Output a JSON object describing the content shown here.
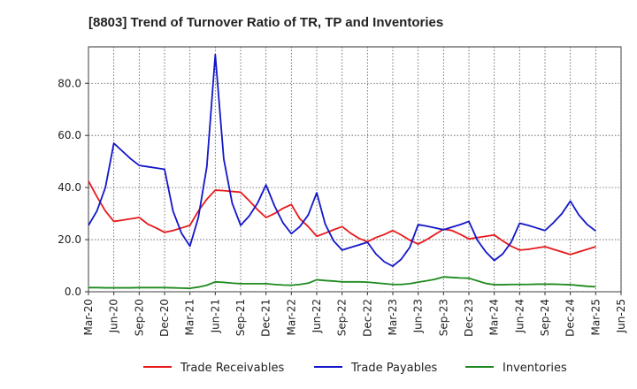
{
  "chart_data": {
    "type": "line",
    "title": "[8803]  Trend of Turnover Ratio of TR, TP and Inventories",
    "xlabel": "",
    "ylabel": "",
    "x_tick_labels": [
      "Mar-20",
      "Jun-20",
      "Sep-20",
      "Dec-20",
      "Mar-21",
      "Jun-21",
      "Sep-21",
      "Dec-21",
      "Mar-22",
      "Jun-22",
      "Sep-22",
      "Dec-22",
      "Mar-23",
      "Jun-23",
      "Sep-23",
      "Dec-23",
      "Mar-24",
      "Jun-24",
      "Sep-24",
      "Dec-24",
      "Mar-25",
      "Jun-25"
    ],
    "y_ticks": [
      0,
      20,
      40,
      60,
      80
    ],
    "y_tick_labels": [
      "0.0",
      "20.0",
      "40.0",
      "60.0",
      "80.0"
    ],
    "ylim": [
      0,
      94
    ],
    "xlim": [
      "Mar-20",
      "Jun-25"
    ],
    "grid": true,
    "legend_position": "bottom",
    "x": [
      "Mar-20",
      "Apr-20",
      "May-20",
      "Jun-20",
      "Jul-20",
      "Aug-20",
      "Sep-20",
      "Oct-20",
      "Nov-20",
      "Dec-20",
      "Jan-21",
      "Feb-21",
      "Mar-21",
      "Apr-21",
      "May-21",
      "Jun-21",
      "Jul-21",
      "Aug-21",
      "Sep-21",
      "Oct-21",
      "Nov-21",
      "Dec-21",
      "Jan-22",
      "Feb-22",
      "Mar-22",
      "Apr-22",
      "May-22",
      "Jun-22",
      "Jul-22",
      "Aug-22",
      "Sep-22",
      "Oct-22",
      "Nov-22",
      "Dec-22",
      "Jan-23",
      "Feb-23",
      "Mar-23",
      "Apr-23",
      "May-23",
      "Jun-23",
      "Jul-23",
      "Aug-23",
      "Sep-23",
      "Oct-23",
      "Nov-23",
      "Dec-23",
      "Jan-24",
      "Feb-24",
      "Mar-24",
      "Apr-24",
      "May-24",
      "Jun-24",
      "Jul-24",
      "Aug-24",
      "Sep-24",
      "Oct-24",
      "Nov-24",
      "Dec-24",
      "Jan-25",
      "Feb-25",
      "Mar-25"
    ],
    "series": [
      {
        "name": "Trade Receivables",
        "color": "#e8191b",
        "values": [
          42.5,
          36.5,
          31.0,
          27.0,
          27.5,
          28.0,
          28.5,
          26.0,
          24.5,
          22.8,
          23.5,
          24.5,
          25.5,
          31.0,
          35.5,
          39.0,
          38.8,
          38.5,
          38.2,
          35.0,
          31.5,
          28.5,
          30.0,
          32.0,
          33.5,
          28.0,
          25.0,
          21.3,
          22.5,
          23.8,
          25.0,
          22.5,
          20.5,
          19.2,
          20.8,
          22.0,
          23.5,
          21.8,
          19.8,
          18.3,
          20.0,
          22.0,
          24.0,
          23.5,
          22.0,
          20.3,
          20.8,
          21.3,
          21.8,
          19.5,
          17.5,
          16.0,
          16.3,
          16.8,
          17.3,
          16.3,
          15.3,
          14.3,
          15.3,
          16.3,
          17.3
        ]
      },
      {
        "name": "Trade Payables",
        "color": "#1316c8",
        "values": [
          25.5,
          31.0,
          40.0,
          57.0,
          54.0,
          51.0,
          48.5,
          48.0,
          47.5,
          47.0,
          31.0,
          22.5,
          17.5,
          28.5,
          48.0,
          91.0,
          51.0,
          34.0,
          25.5,
          29.0,
          34.0,
          41.0,
          33.0,
          26.5,
          22.3,
          25.0,
          29.5,
          38.0,
          26.0,
          19.5,
          16.0,
          17.0,
          18.0,
          19.0,
          14.5,
          11.5,
          9.8,
          12.5,
          17.0,
          25.8,
          25.2,
          24.5,
          23.8,
          24.8,
          25.8,
          27.0,
          19.8,
          15.3,
          12.0,
          14.5,
          19.0,
          26.3,
          25.5,
          24.5,
          23.5,
          26.5,
          30.0,
          34.8,
          29.5,
          25.8,
          23.3
        ]
      },
      {
        "name": "Inventories",
        "color": "#1d8a1d",
        "values": [
          1.6,
          1.6,
          1.5,
          1.5,
          1.5,
          1.5,
          1.6,
          1.6,
          1.6,
          1.6,
          1.5,
          1.4,
          1.3,
          1.8,
          2.5,
          3.8,
          3.6,
          3.3,
          3.1,
          3.1,
          3.1,
          3.1,
          2.8,
          2.6,
          2.5,
          2.8,
          3.3,
          4.6,
          4.3,
          4.1,
          3.8,
          3.8,
          3.8,
          3.7,
          3.4,
          3.1,
          2.8,
          2.8,
          3.1,
          3.7,
          4.2,
          4.8,
          5.7,
          5.5,
          5.3,
          5.2,
          4.2,
          3.2,
          2.7,
          2.7,
          2.8,
          2.8,
          2.8,
          2.9,
          2.9,
          2.9,
          2.8,
          2.7,
          2.4,
          2.1,
          1.9
        ]
      }
    ]
  }
}
